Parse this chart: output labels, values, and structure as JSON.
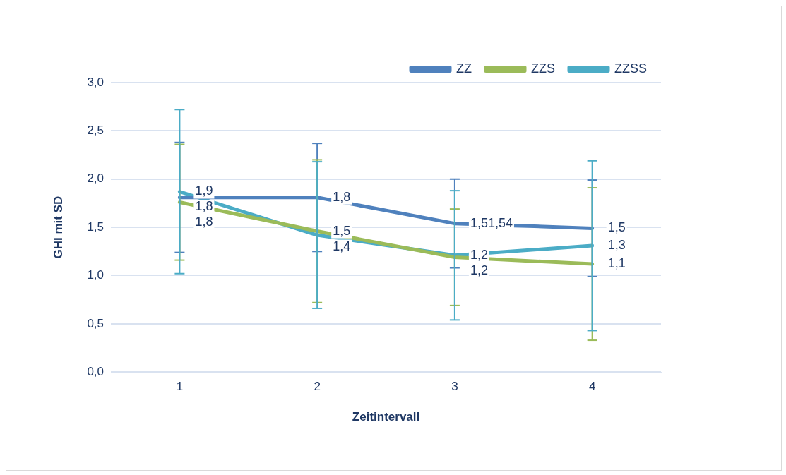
{
  "chart_data": {
    "type": "line",
    "xlabel": "Zeitintervall",
    "ylabel": "GHI mit SD",
    "categories": [
      "1",
      "2",
      "3",
      "4"
    ],
    "series": [
      {
        "name": "ZZ",
        "color": "#4f81bd",
        "values": [
          1.81,
          1.81,
          1.54,
          1.49
        ],
        "errors": [
          0.57,
          0.56,
          0.46,
          0.5
        ],
        "value_labels": [
          "1,8",
          "1,8",
          "1,51,54",
          "1,5"
        ]
      },
      {
        "name": "ZZS",
        "color": "#9bbb59",
        "values": [
          1.76,
          1.46,
          1.19,
          1.12
        ],
        "errors": [
          0.6,
          0.74,
          0.5,
          0.79
        ],
        "value_labels": [
          "1,8",
          "1,5",
          "1,2",
          "1,1"
        ]
      },
      {
        "name": "ZZSS",
        "color": "#4bacc6",
        "values": [
          1.87,
          1.42,
          1.21,
          1.31
        ],
        "errors": [
          0.85,
          0.76,
          0.67,
          0.88
        ],
        "value_labels": [
          "1,9",
          "1,4",
          "1,2",
          "1,3"
        ]
      }
    ],
    "ylim": [
      0,
      3
    ],
    "yticks": [
      {
        "value": 0,
        "label": "0,0"
      },
      {
        "value": 0.5,
        "label": "0,5"
      },
      {
        "value": 1,
        "label": "1,0"
      },
      {
        "value": 1.5,
        "label": "1,5"
      },
      {
        "value": 2,
        "label": "2,0"
      },
      {
        "value": 2.5,
        "label": "2,5"
      },
      {
        "value": 3,
        "label": "3,0"
      }
    ],
    "grid": "y",
    "legend": "top right",
    "marker": "none",
    "line_style": "solid"
  }
}
